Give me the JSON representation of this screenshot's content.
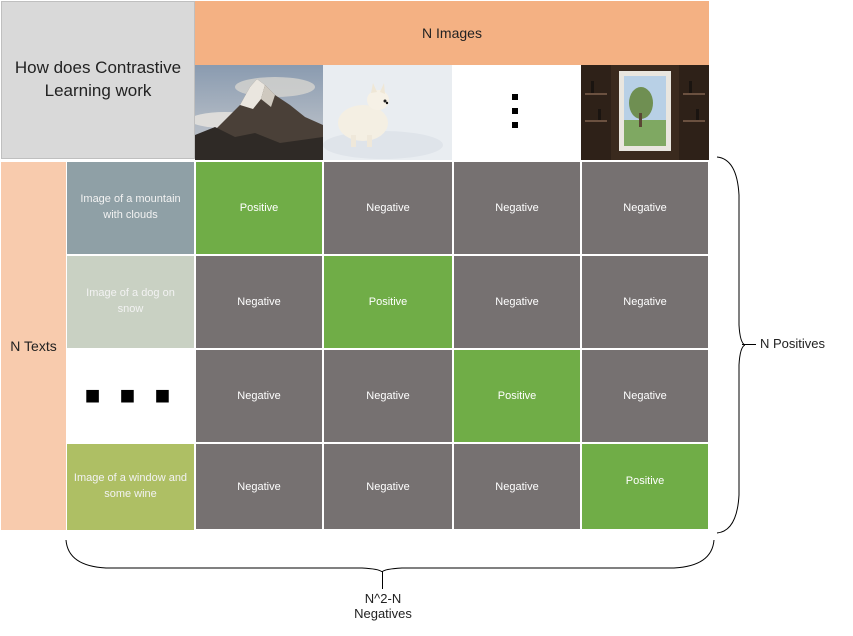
{
  "title": "How does Contrastive Learning work",
  "n_images_label": "N Images",
  "n_texts_label": "N Texts",
  "images": [
    {
      "name": "mountain-with-clouds-image"
    },
    {
      "name": "dog-on-snow-image"
    },
    {
      "name": "vertical-ellipsis"
    },
    {
      "name": "window-and-wine-image"
    }
  ],
  "texts": [
    {
      "label": "Image of a mountain with clouds",
      "color": "#8fa0a6"
    },
    {
      "label": "Image of a dog on snow",
      "color": "#c9d1c3"
    },
    {
      "label": "",
      "color": "#ffffff"
    },
    {
      "label": "Image of a window and some wine",
      "color": "#aebf64"
    }
  ],
  "dots": "■ ■ ■",
  "matrix": [
    [
      "Positive",
      "Negative",
      "Negative",
      "Negative"
    ],
    [
      "Negative",
      "Positive",
      "Negative",
      "Negative"
    ],
    [
      "Negative",
      "Negative",
      "Positive",
      "Negative"
    ],
    [
      "Negative",
      "Negative",
      "Negative",
      "Positive"
    ]
  ],
  "positives_label": "N Positives",
  "negatives_label_line1": "N^2-N",
  "negatives_label_line2": "Negatives",
  "colors": {
    "positive": "#70ad47",
    "negative": "#767171",
    "header_orange": "#f4b183",
    "side_peach": "#f8cbad",
    "title_grey": "#d9d9d9"
  }
}
